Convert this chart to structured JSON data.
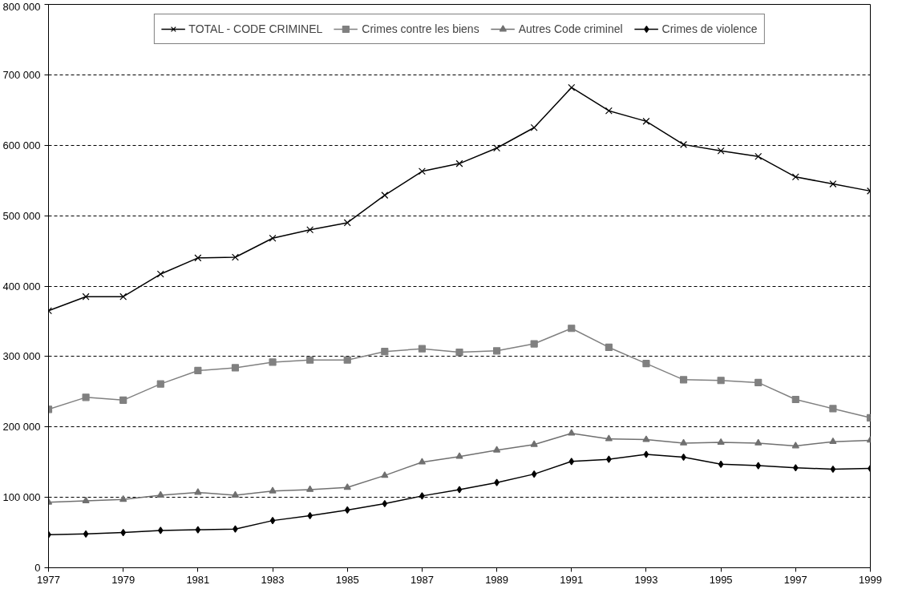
{
  "chart_data": {
    "type": "line",
    "x": [
      1977,
      1978,
      1979,
      1980,
      1981,
      1982,
      1983,
      1984,
      1985,
      1986,
      1987,
      1988,
      1989,
      1990,
      1991,
      1992,
      1993,
      1994,
      1995,
      1996,
      1997,
      1998,
      1999
    ],
    "series": [
      {
        "name": "TOTAL - CODE CRIMINEL",
        "color": "#000000",
        "marker": "cross",
        "values": [
          365000,
          385000,
          385000,
          417000,
          440000,
          441000,
          468000,
          480000,
          490000,
          529000,
          563000,
          574000,
          596000,
          625000,
          682000,
          649000,
          634000,
          601000,
          592000,
          584000,
          555000,
          545000,
          535000
        ]
      },
      {
        "name": "Crimes contre les biens",
        "color": "#808080",
        "marker": "square",
        "values": [
          225000,
          242000,
          238000,
          261000,
          280000,
          284000,
          292000,
          295000,
          295000,
          307000,
          311000,
          306000,
          308000,
          318000,
          340000,
          313000,
          290000,
          267000,
          266000,
          263000,
          239000,
          226000,
          213000
        ]
      },
      {
        "name": "Autres Code criminel",
        "color": "#707070",
        "marker": "triangle",
        "values": [
          93000,
          95000,
          97000,
          103000,
          107000,
          103000,
          109000,
          111000,
          114000,
          131000,
          150000,
          158000,
          167000,
          175000,
          191000,
          183000,
          182000,
          177000,
          178000,
          177000,
          173000,
          179000,
          181000
        ]
      },
      {
        "name": "Crimes de violence",
        "color": "#000000",
        "marker": "diamond",
        "values": [
          47000,
          48000,
          50000,
          53000,
          54000,
          55000,
          67000,
          74000,
          82000,
          91000,
          102000,
          111000,
          121000,
          133000,
          151000,
          154000,
          161000,
          157000,
          147000,
          145000,
          142000,
          140000,
          141000
        ]
      }
    ],
    "xlim": [
      1977,
      1999
    ],
    "xticks": [
      1977,
      1979,
      1981,
      1983,
      1985,
      1987,
      1989,
      1991,
      1993,
      1995,
      1997,
      1999
    ],
    "ylim": [
      0,
      800000
    ],
    "yticks": [
      0,
      {
        "value": 100000,
        "label": "100 000"
      },
      {
        "value": 200000,
        "label": "200 000"
      },
      {
        "value": 300000,
        "label": "300 000"
      },
      {
        "value": 400000,
        "label": "400 000"
      },
      {
        "value": 500000,
        "label": "500 000"
      },
      {
        "value": 600000,
        "label": "600 000"
      },
      {
        "value": 700000,
        "label": "700 000"
      },
      {
        "value": 800000,
        "label": "800 000"
      }
    ],
    "grid": "y",
    "legend": "top",
    "line_style": "solid"
  }
}
